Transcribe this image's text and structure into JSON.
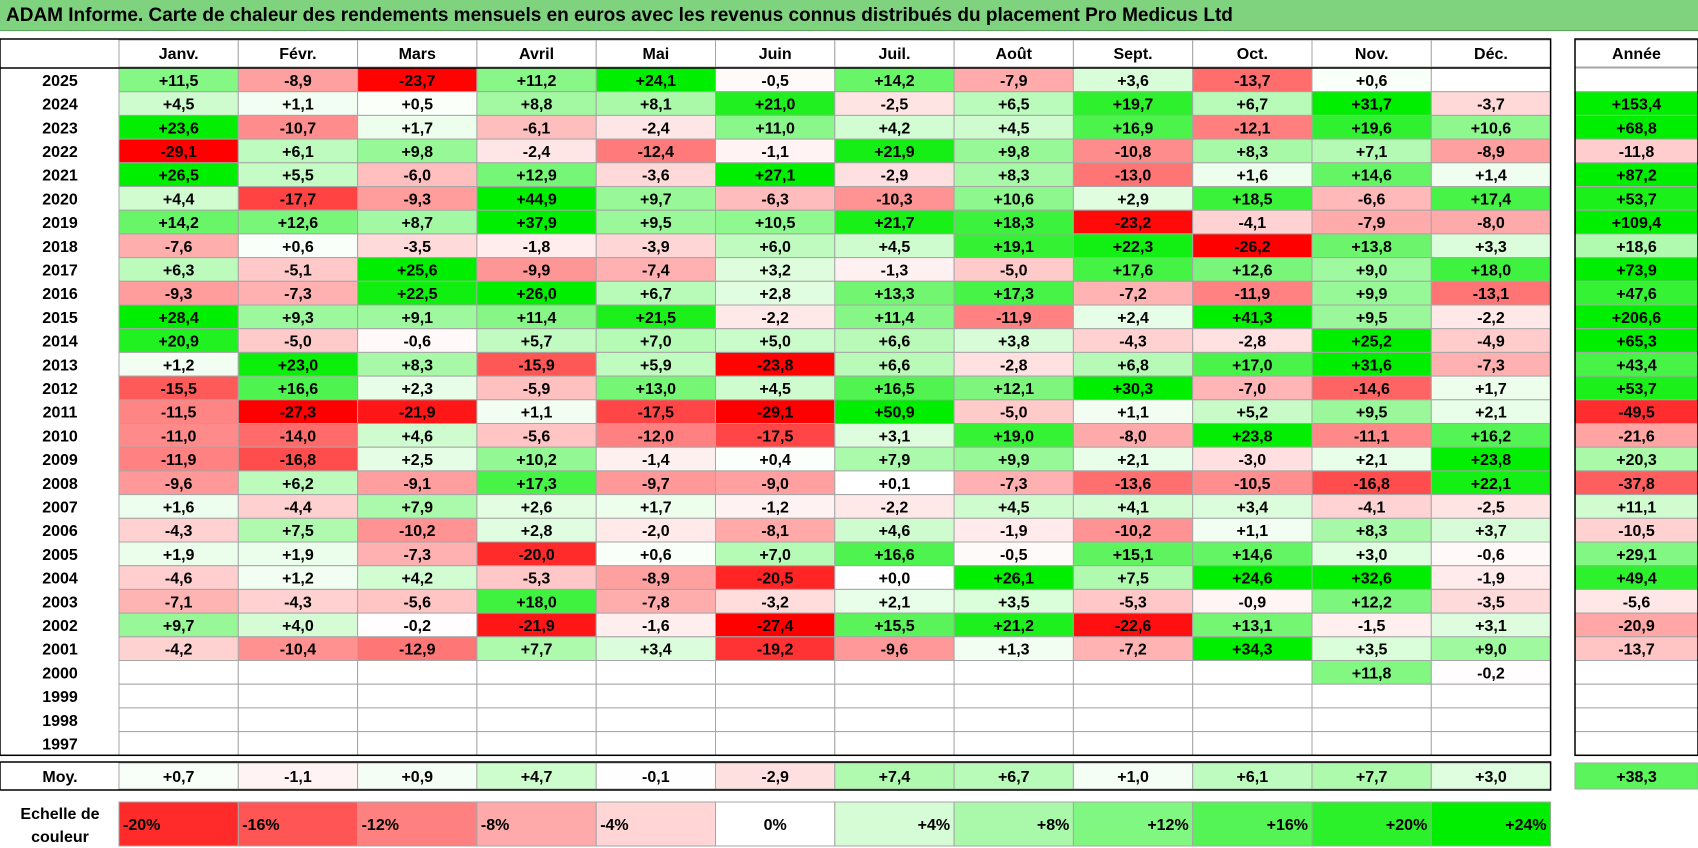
{
  "title": "ADAM Informe. Carte de chaleur des rendements mensuels en euros avec les revenus connus distribués du placement Pro Medicus Ltd",
  "chart_data": {
    "type": "heatmap",
    "months": [
      "Janv.",
      "Févr.",
      "Mars",
      "Avril",
      "Mai",
      "Juin",
      "Juil.",
      "Août",
      "Sept.",
      "Oct.",
      "Nov.",
      "Déc."
    ],
    "year_header": "Année",
    "years": [
      "2025",
      "2024",
      "2023",
      "2022",
      "2021",
      "2020",
      "2019",
      "2018",
      "2017",
      "2016",
      "2015",
      "2014",
      "2013",
      "2012",
      "2011",
      "2010",
      "2009",
      "2008",
      "2007",
      "2006",
      "2005",
      "2004",
      "2003",
      "2002",
      "2001",
      "2000",
      "1999",
      "1998",
      "1997"
    ],
    "values": [
      [
        11.5,
        -8.9,
        -23.7,
        11.2,
        24.1,
        -0.5,
        14.2,
        -7.9,
        3.6,
        -13.7,
        0.6,
        null
      ],
      [
        4.5,
        1.1,
        0.5,
        8.8,
        8.1,
        21.0,
        -2.5,
        6.5,
        19.7,
        6.7,
        31.7,
        -3.7
      ],
      [
        23.6,
        -10.7,
        1.7,
        -6.1,
        -2.4,
        11.0,
        4.2,
        4.5,
        16.9,
        -12.1,
        19.6,
        10.6
      ],
      [
        -29.1,
        6.1,
        9.8,
        -2.4,
        -12.4,
        -1.1,
        21.9,
        9.8,
        -10.8,
        8.3,
        7.1,
        -8.9
      ],
      [
        26.5,
        5.5,
        -6.0,
        12.9,
        -3.6,
        27.1,
        -2.9,
        8.3,
        -13.0,
        1.6,
        14.6,
        1.4
      ],
      [
        4.4,
        -17.7,
        -9.3,
        44.9,
        9.7,
        -6.3,
        -10.3,
        10.6,
        2.9,
        18.5,
        -6.6,
        17.4
      ],
      [
        14.2,
        12.6,
        8.7,
        37.9,
        9.5,
        10.5,
        21.7,
        18.3,
        -23.2,
        -4.1,
        -7.9,
        -8.0
      ],
      [
        -7.6,
        0.6,
        -3.5,
        -1.8,
        -3.9,
        6.0,
        4.5,
        19.1,
        22.3,
        -26.2,
        13.8,
        3.3
      ],
      [
        6.3,
        -5.1,
        25.6,
        -9.9,
        -7.4,
        3.2,
        -1.3,
        -5.0,
        17.6,
        12.6,
        9.0,
        18.0
      ],
      [
        -9.3,
        -7.3,
        22.5,
        26.0,
        6.7,
        2.8,
        13.3,
        17.3,
        -7.2,
        -11.9,
        9.9,
        -13.1
      ],
      [
        28.4,
        9.3,
        9.1,
        11.4,
        21.5,
        -2.2,
        11.4,
        -11.9,
        2.4,
        41.3,
        9.5,
        -2.2
      ],
      [
        20.9,
        -5.0,
        -0.6,
        5.7,
        7.0,
        5.0,
        6.6,
        3.8,
        -4.3,
        -2.8,
        25.2,
        -4.9
      ],
      [
        1.2,
        23.0,
        8.3,
        -15.9,
        5.9,
        -23.8,
        6.6,
        -2.8,
        6.8,
        17.0,
        31.6,
        -7.3
      ],
      [
        -15.5,
        16.6,
        2.3,
        -5.9,
        13.0,
        4.5,
        16.5,
        12.1,
        30.3,
        -7.0,
        -14.6,
        1.7
      ],
      [
        -11.5,
        -27.3,
        -21.9,
        1.1,
        -17.5,
        -29.1,
        50.9,
        -5.0,
        1.1,
        5.2,
        9.5,
        2.1
      ],
      [
        -11.0,
        -14.0,
        4.6,
        -5.6,
        -12.0,
        -17.5,
        3.1,
        19.0,
        -8.0,
        23.8,
        -11.1,
        16.2
      ],
      [
        -11.9,
        -16.8,
        2.5,
        10.2,
        -1.4,
        0.4,
        7.9,
        9.9,
        2.1,
        -3.0,
        2.1,
        23.8
      ],
      [
        -9.6,
        6.2,
        -9.1,
        17.3,
        -9.7,
        -9.0,
        0.1,
        -7.3,
        -13.6,
        -10.5,
        -16.8,
        22.1
      ],
      [
        1.6,
        -4.4,
        7.9,
        2.6,
        1.7,
        -1.2,
        -2.2,
        4.5,
        4.1,
        3.4,
        -4.1,
        -2.5
      ],
      [
        -4.3,
        7.5,
        -10.2,
        2.8,
        -2.0,
        -8.1,
        4.6,
        -1.9,
        -10.2,
        1.1,
        8.3,
        3.7
      ],
      [
        1.9,
        1.9,
        -7.3,
        -20.0,
        0.6,
        7.0,
        16.6,
        -0.5,
        15.1,
        14.6,
        3.0,
        -0.6
      ],
      [
        -4.6,
        1.2,
        4.2,
        -5.3,
        -8.9,
        -20.5,
        0.0,
        26.1,
        7.5,
        24.6,
        32.6,
        -1.9
      ],
      [
        -7.1,
        -4.3,
        -5.6,
        18.0,
        -7.8,
        -3.2,
        2.1,
        3.5,
        -5.3,
        -0.9,
        12.2,
        -3.5
      ],
      [
        9.7,
        4.0,
        -0.2,
        -21.9,
        -1.6,
        -27.4,
        15.5,
        21.2,
        -22.6,
        13.1,
        -1.5,
        3.1
      ],
      [
        -4.2,
        -10.4,
        -12.9,
        7.7,
        3.4,
        -19.2,
        -9.6,
        1.3,
        -7.2,
        34.3,
        3.5,
        9.0
      ],
      [
        null,
        null,
        null,
        null,
        null,
        null,
        null,
        null,
        null,
        null,
        11.8,
        -0.2
      ],
      [
        null,
        null,
        null,
        null,
        null,
        null,
        null,
        null,
        null,
        null,
        null,
        null
      ],
      [
        null,
        null,
        null,
        null,
        null,
        null,
        null,
        null,
        null,
        null,
        null,
        null
      ],
      [
        null,
        null,
        null,
        null,
        null,
        null,
        null,
        null,
        null,
        null,
        null,
        null
      ]
    ],
    "annual": [
      null,
      153.4,
      68.8,
      -11.8,
      87.2,
      53.7,
      109.4,
      18.6,
      73.9,
      47.6,
      206.6,
      65.3,
      43.4,
      53.7,
      -49.5,
      -21.6,
      20.3,
      -37.8,
      11.1,
      -10.5,
      29.1,
      49.4,
      -5.6,
      -20.9,
      -13.7,
      null,
      null,
      null,
      null
    ],
    "average_label": "Moy.",
    "averages": [
      0.7,
      -1.1,
      0.9,
      4.7,
      -0.1,
      -2.9,
      7.4,
      6.7,
      1.0,
      6.1,
      7.7,
      3.0
    ],
    "average_annual": 38.3,
    "scale_label_line1": "Echelle de",
    "scale_label_line2": "couleur",
    "scale": [
      "-20%",
      "-16%",
      "-12%",
      "-8%",
      "-4%",
      "0%",
      "+4%",
      "+8%",
      "+12%",
      "+16%",
      "+20%",
      "+24%"
    ],
    "scale_values": [
      -20,
      -16,
      -12,
      -8,
      -4,
      0,
      4,
      8,
      12,
      16,
      20,
      24
    ],
    "colors": {
      "negative": "#ff0000",
      "neutral": "#ffffff",
      "positive": "#00ee00"
    }
  }
}
